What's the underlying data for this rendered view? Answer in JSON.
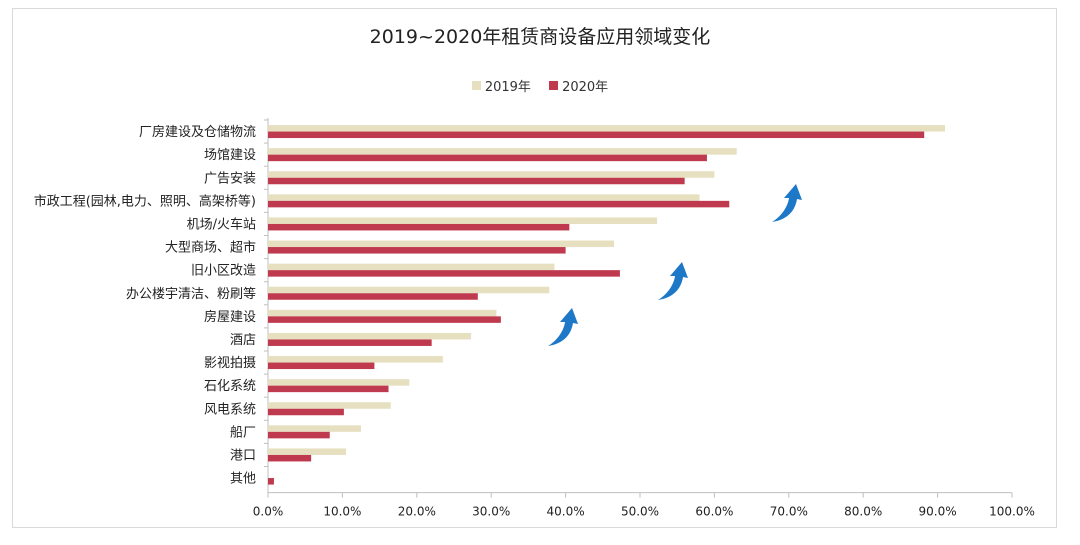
{
  "chart_data": {
    "type": "bar",
    "orientation": "horizontal",
    "title": "2019~2020年租赁商设备应用领域变化",
    "categories": [
      "厂房建设及仓储物流",
      "场馆建设",
      "广告安装",
      "市政工程(园林,电力、照明、高架桥等)",
      "机场/火车站",
      "大型商场、超市",
      "旧小区改造",
      "办公楼宇清洁、粉刷等",
      "房屋建设",
      "酒店",
      "影视拍摄",
      "石化系统",
      "风电系统",
      "船厂",
      "港口",
      "其他"
    ],
    "series": [
      {
        "name": "2019年",
        "color": "#e6dfc0",
        "values": [
          91.0,
          63.0,
          60.0,
          58.0,
          52.3,
          46.5,
          38.5,
          37.8,
          30.7,
          27.3,
          23.5,
          19.0,
          16.5,
          12.5,
          10.5,
          0.0
        ]
      },
      {
        "name": "2020年",
        "color": "#bf3a4e",
        "values": [
          88.2,
          59.0,
          56.0,
          62.0,
          40.5,
          40.0,
          47.3,
          28.2,
          31.3,
          22.0,
          14.3,
          16.2,
          10.2,
          8.3,
          5.8,
          0.8
        ]
      }
    ],
    "xlim": [
      0,
      100
    ],
    "xticks": [
      "0.0%",
      "10.0%",
      "20.0%",
      "30.0%",
      "40.0%",
      "50.0%",
      "60.0%",
      "70.0%",
      "80.0%",
      "90.0%",
      "100.0%"
    ],
    "legend_position": "top-center",
    "grid": false,
    "annotations": [
      {
        "type": "arrow-up-icon",
        "color": "#1e78c8",
        "near_category": "市政工程(园林,电力、照明、高架桥等)"
      },
      {
        "type": "arrow-up-icon",
        "color": "#1e78c8",
        "near_category": "旧小区改造"
      },
      {
        "type": "arrow-up-icon",
        "color": "#1e78c8",
        "near_category": "房屋建设"
      }
    ]
  }
}
